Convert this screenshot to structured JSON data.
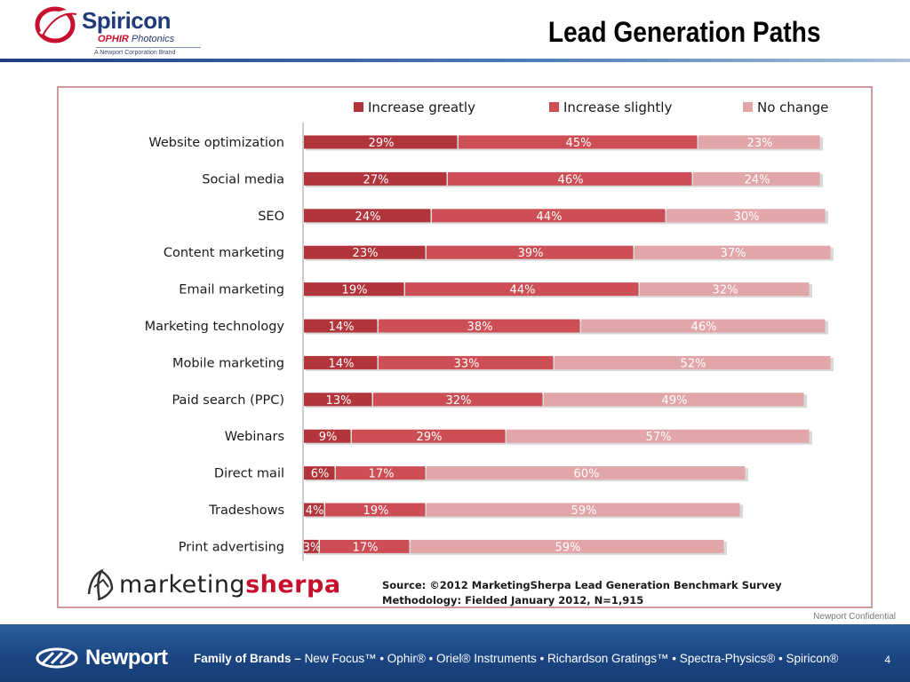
{
  "header": {
    "logo_name": "Spiricon",
    "logo_ophir": "OPHIR",
    "logo_photonics": "Photonics",
    "logo_sub": "A Newport Corporation Brand",
    "title": "Lead Generation Paths"
  },
  "colors": {
    "increase_greatly": "#b2353b",
    "increase_slightly": "#cd4f55",
    "no_change": "#e2a5a8",
    "frame": "#cf9b9b",
    "header_rule": "#1c3f7c",
    "footer": "#1b4683"
  },
  "chart_data": {
    "type": "bar",
    "orientation": "horizontal",
    "stacked": true,
    "categories": [
      "Website optimization",
      "Social media",
      "SEO",
      "Content marketing",
      "Email marketing",
      "Marketing technology",
      "Mobile marketing",
      "Paid search (PPC)",
      "Webinars",
      "Direct mail",
      "Tradeshows",
      "Print advertising"
    ],
    "series": [
      {
        "name": "Increase greatly",
        "values": [
          29,
          27,
          24,
          23,
          19,
          14,
          14,
          13,
          9,
          6,
          4,
          3
        ]
      },
      {
        "name": "Increase slightly",
        "values": [
          45,
          46,
          44,
          39,
          44,
          38,
          33,
          32,
          29,
          17,
          19,
          17
        ]
      },
      {
        "name": "No change",
        "values": [
          23,
          24,
          30,
          37,
          32,
          46,
          52,
          49,
          57,
          60,
          59,
          59
        ]
      }
    ],
    "value_suffix": "%",
    "legend_position": "top",
    "grid": false
  },
  "sherpa": {
    "brand_a": "marketing",
    "brand_b": "sherpa"
  },
  "source": {
    "line1": "Source: ©2012 MarketingSherpa Lead Generation Benchmark Survey",
    "line2": "Methodology: Fielded January 2012, N=1,915"
  },
  "confidential": "Newport Confidential",
  "footer": {
    "logo_text": "Newport",
    "brands_prefix": "Family of Brands –",
    "brands_list": "New Focus™ • Ophir® • Oriel® Instruments • Richardson Gratings™ • Spectra-Physics® • Spiricon®",
    "page_number": "4"
  }
}
